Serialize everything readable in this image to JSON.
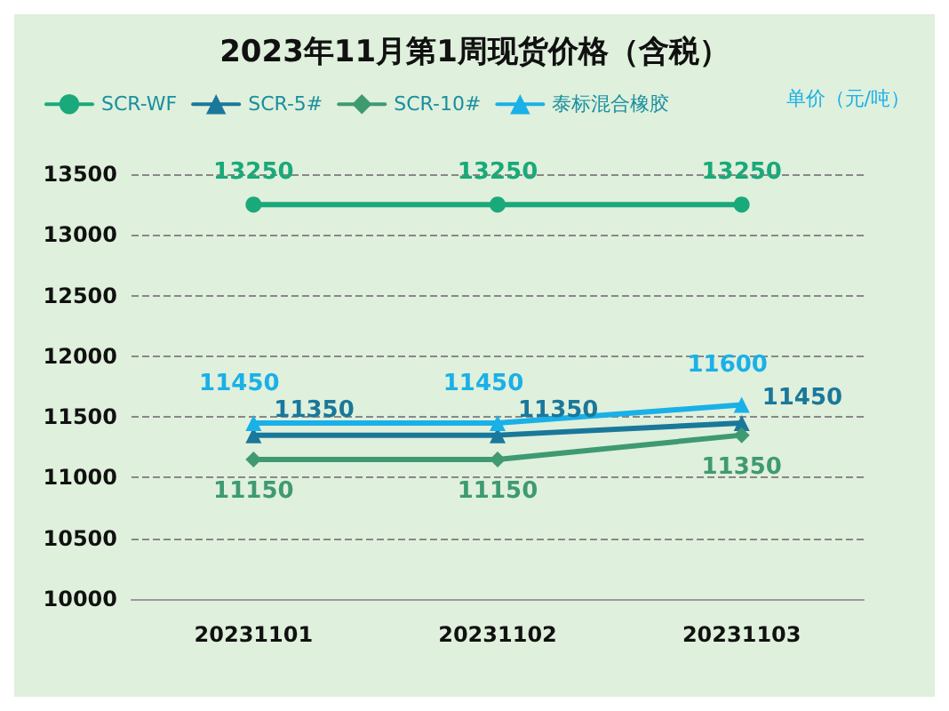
{
  "chart_data": {
    "type": "line",
    "title": "2023年11月第1周现货价格（含税）",
    "ylabel": "单价（元/吨）",
    "categories": [
      "20231101",
      "20231102",
      "20231103"
    ],
    "series": [
      {
        "name": "SCR-WF",
        "color": "#1aa97a",
        "marker": "circle",
        "values": [
          13250,
          13250,
          13250
        ]
      },
      {
        "name": "SCR-5#",
        "color": "#1a789a",
        "marker": "triangle",
        "values": [
          11350,
          11350,
          11450
        ]
      },
      {
        "name": "SCR-10#",
        "color": "#3f9a72",
        "marker": "diamond",
        "values": [
          11150,
          11150,
          11350
        ]
      },
      {
        "name": "泰标混合橡胶",
        "color": "#1ab0e8",
        "marker": "triangle",
        "values": [
          11450,
          11450,
          11600
        ]
      }
    ],
    "ylim": [
      10000,
      13500
    ],
    "yticks": [
      10000,
      10500,
      11000,
      11500,
      12000,
      12500,
      13000,
      13500
    ],
    "grid": "y",
    "line_style": "solid",
    "legend": "top",
    "data_labels": true
  }
}
